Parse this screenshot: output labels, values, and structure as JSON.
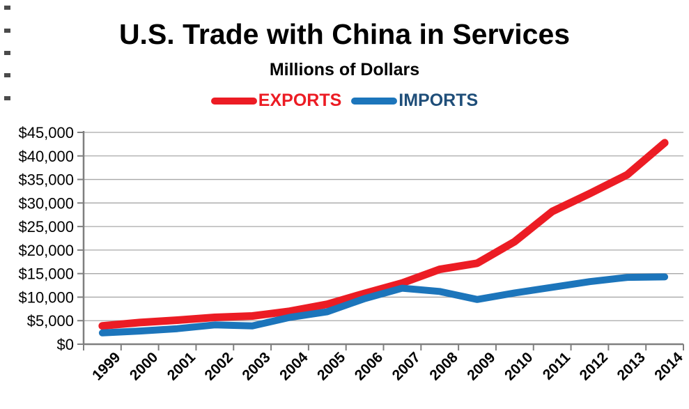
{
  "chart_data": {
    "type": "line",
    "title": "U.S. Trade with China in Services",
    "subtitle": "Millions of Dollars",
    "categories": [
      "1999",
      "2000",
      "2001",
      "2002",
      "2003",
      "2004",
      "2005",
      "2006",
      "2007",
      "2008",
      "2009",
      "2010",
      "2011",
      "2012",
      "2013",
      "2014"
    ],
    "series": [
      {
        "name": "EXPORTS",
        "color": "#EC1C24",
        "label_color": "#EC1C24",
        "values": [
          3900,
          4600,
          5100,
          5700,
          6000,
          7000,
          8500,
          10800,
          13000,
          15900,
          17200,
          21800,
          28200,
          32000,
          36000,
          42800
        ]
      },
      {
        "name": "IMPORTS",
        "color": "#1C75BB",
        "label_color": "#1F4E79",
        "values": [
          2400,
          2800,
          3300,
          4100,
          3900,
          5700,
          6900,
          9700,
          11900,
          11200,
          9500,
          10900,
          12100,
          13300,
          14200,
          14300
        ]
      }
    ],
    "ylim": [
      0,
      45000
    ],
    "ytick_step": 5000,
    "y_tick_labels": [
      "$0",
      "$5,000",
      "$10,000",
      "$15,000",
      "$20,000",
      "$25,000",
      "$30,000",
      "$35,000",
      "$40,000",
      "$45,000"
    ],
    "grid": true,
    "legend_position": "top",
    "colors": {
      "gridline": "#A8A8A8",
      "axis": "#7F7F7F",
      "tick_text": "#000000"
    }
  }
}
